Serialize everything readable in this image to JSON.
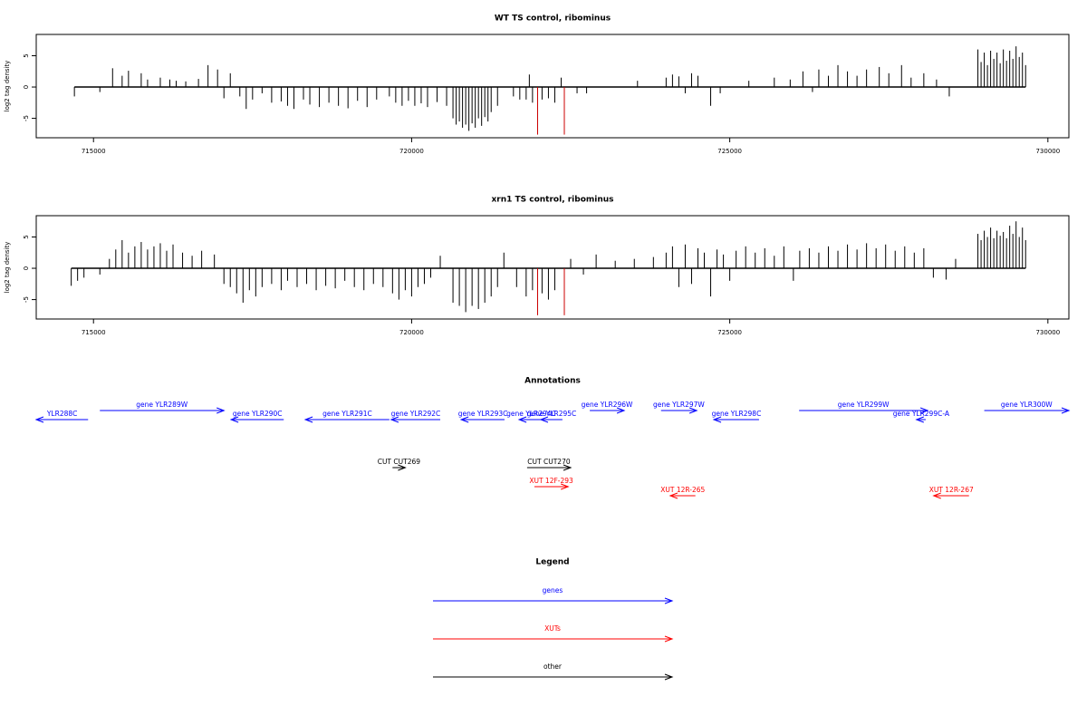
{
  "chart_data": [
    {
      "type": "bar",
      "title": "WT TS control, ribominus",
      "y_label": "log2 tag density",
      "xlim": [
        714100,
        730330
      ],
      "xticks": [
        715000,
        720000,
        725000,
        730000
      ],
      "ylim": [
        -8.1,
        8.4
      ],
      "yticks": [
        -5,
        0,
        5
      ],
      "series": [
        {
          "color": "#000000",
          "x": [
            714700,
            715100,
            715300,
            715450,
            715550,
            715750,
            715850,
            716050,
            716200,
            716300,
            716450,
            716650,
            716800,
            716950,
            717050,
            717150,
            717300,
            717400,
            717500,
            717650,
            717800,
            717950,
            718050,
            718150,
            718300,
            718400,
            718550,
            718700,
            718850,
            719000,
            719150,
            719300,
            719450,
            719650,
            719750,
            719850,
            719950,
            720050,
            720150,
            720250,
            720400,
            720550,
            720650,
            720700,
            720750,
            720800,
            720850,
            720900,
            720950,
            721000,
            721050,
            721100,
            721150,
            721200,
            721250,
            721350,
            721600,
            721700,
            721800,
            721850,
            721900,
            722050,
            722150,
            722250,
            722350,
            722600,
            722750,
            723550,
            724000,
            724100,
            724200,
            724300,
            724400,
            724500,
            724700,
            724850,
            725300,
            725700,
            725950,
            726150,
            726300,
            726400,
            726550,
            726700,
            726850,
            727000,
            727150,
            727350,
            727500,
            727700,
            727850,
            728050,
            728250,
            728450,
            728900,
            728950,
            729000,
            729050,
            729100,
            729150,
            729200,
            729250,
            729300,
            729350,
            729400,
            729450,
            729500,
            729550,
            729600,
            729650
          ],
          "values": [
            -1.5,
            -0.8,
            3,
            1.8,
            2.6,
            2.2,
            1.2,
            1.5,
            1.2,
            1,
            0.9,
            1.3,
            3.5,
            2.8,
            -1.8,
            2.2,
            -1.5,
            -3.5,
            -2,
            -1,
            -2.5,
            -2.3,
            -3,
            -3.5,
            -2,
            -2.8,
            -3.2,
            -2.5,
            -3,
            -3.4,
            -2.2,
            -3.2,
            -2,
            -1.5,
            -2.5,
            -3,
            -2.2,
            -3,
            -2.6,
            -3.2,
            -2.4,
            -3,
            -5,
            -6,
            -5.5,
            -6.5,
            -6,
            -7,
            -5.8,
            -6.5,
            -5,
            -6.2,
            -4.8,
            -5.5,
            -4,
            -3,
            -1.5,
            -2,
            -2,
            2,
            -2.5,
            -2,
            -1.8,
            -2.5,
            1.5,
            -1,
            -1,
            1,
            1.5,
            2,
            1.7,
            -1,
            2.2,
            1.8,
            -3,
            -1,
            1,
            1.5,
            1.2,
            2.5,
            -0.8,
            2.8,
            1.8,
            3.5,
            2.5,
            1.8,
            2.8,
            3.2,
            2.2,
            3.5,
            1.5,
            2.2,
            1.2,
            -1.5,
            6,
            4,
            5.5,
            3.5,
            5.8,
            4.5,
            5.5,
            3.8,
            6,
            4.2,
            5.8,
            4.5,
            6.5,
            4.8,
            5.5,
            3.5
          ]
        },
        {
          "color": "#cc0000",
          "x": [
            721980,
            722400
          ],
          "values": [
            -7.6,
            -7.6
          ]
        }
      ]
    },
    {
      "type": "bar",
      "title": "xrn1 TS control, ribominus",
      "y_label": "log2 tag density",
      "xlim": [
        714100,
        730330
      ],
      "xticks": [
        715000,
        720000,
        725000,
        730000
      ],
      "ylim": [
        -8.1,
        8.4
      ],
      "yticks": [
        -5,
        0,
        5
      ],
      "series": [
        {
          "color": "#000000",
          "x": [
            714650,
            714750,
            714850,
            715100,
            715250,
            715350,
            715450,
            715550,
            715650,
            715750,
            715850,
            715950,
            716050,
            716150,
            716250,
            716400,
            716550,
            716700,
            716900,
            717050,
            717150,
            717250,
            717350,
            717450,
            717550,
            717650,
            717800,
            717950,
            718050,
            718200,
            718350,
            718500,
            718650,
            718800,
            718950,
            719100,
            719250,
            719400,
            719550,
            719700,
            719800,
            719900,
            720000,
            720100,
            720200,
            720300,
            720450,
            720650,
            720750,
            720850,
            720950,
            721050,
            721150,
            721250,
            721350,
            721450,
            721650,
            721800,
            721900,
            722050,
            722150,
            722250,
            722500,
            722700,
            722900,
            723200,
            723500,
            723800,
            724000,
            724100,
            724200,
            724300,
            724400,
            724500,
            724600,
            724700,
            724800,
            724900,
            725000,
            725100,
            725250,
            725400,
            725550,
            725700,
            725850,
            726000,
            726100,
            726250,
            726400,
            726550,
            726700,
            726850,
            727000,
            727150,
            727300,
            727450,
            727600,
            727750,
            727900,
            728050,
            728200,
            728400,
            728550,
            728900,
            728950,
            729000,
            729050,
            729100,
            729150,
            729200,
            729250,
            729300,
            729350,
            729400,
            729450,
            729500,
            729550,
            729600,
            729650
          ],
          "values": [
            -2.8,
            -2,
            -1.5,
            -1,
            1.5,
            3,
            4.5,
            2.5,
            3.5,
            4.2,
            3,
            3.5,
            4,
            2.8,
            3.8,
            2.5,
            2,
            2.8,
            2.2,
            -2.5,
            -3,
            -4,
            -5.5,
            -3.5,
            -4.5,
            -3,
            -2.5,
            -3.5,
            -2,
            -3,
            -2.5,
            -3.5,
            -2.8,
            -3.2,
            -2,
            -3,
            -3.5,
            -2.5,
            -3,
            -4,
            -5,
            -3.5,
            -4.5,
            -3,
            -2.5,
            -1.5,
            2,
            -5.5,
            -6,
            -7,
            -6,
            -6.5,
            -5.5,
            -4.5,
            -3,
            2.5,
            -3,
            -4.5,
            -3.5,
            -4,
            -5,
            -3.5,
            1.5,
            -1,
            2.2,
            1.2,
            1.5,
            1.8,
            2.5,
            3.5,
            -3,
            3.8,
            -2.5,
            3.2,
            2.5,
            -4.5,
            3,
            2.2,
            -2,
            2.8,
            3.5,
            2.5,
            3.2,
            2,
            3.5,
            -2,
            2.8,
            3.2,
            2.5,
            3.5,
            2.8,
            3.8,
            3,
            4,
            3.2,
            3.8,
            2.8,
            3.5,
            2.5,
            3.2,
            -1.5,
            -1.8,
            1.5,
            5.5,
            4.5,
            6,
            5,
            6.5,
            4.8,
            6,
            5.2,
            5.8,
            4.8,
            6.8,
            5.5,
            7.5,
            5,
            6.5,
            4.5
          ]
        },
        {
          "color": "#cc0000",
          "x": [
            721980,
            722400
          ],
          "values": [
            -7.5,
            -7.5
          ]
        }
      ]
    }
  ],
  "annotations": {
    "title": "Annotations",
    "features": [
      {
        "label": "YLR288C",
        "kind": "gene",
        "strand": "-",
        "color": "#0000ff",
        "start": 714100,
        "end": 714915
      },
      {
        "label": "gene YLR289W",
        "kind": "gene",
        "strand": "+",
        "color": "#0000ff",
        "start": 715100,
        "end": 717050
      },
      {
        "label": "gene YLR290C",
        "kind": "gene",
        "strand": "-",
        "color": "#0000ff",
        "start": 717163,
        "end": 717990
      },
      {
        "label": "gene YLR291C",
        "kind": "gene",
        "strand": "-",
        "color": "#0000ff",
        "start": 718330,
        "end": 719650
      },
      {
        "label": "gene YLR292C",
        "kind": "gene",
        "strand": "-",
        "color": "#0000ff",
        "start": 719680,
        "end": 720450
      },
      {
        "label": "gene YLR293C",
        "kind": "gene",
        "strand": "-",
        "color": "#0000ff",
        "start": 720780,
        "end": 721460
      },
      {
        "label": "gene YLR294C",
        "kind": "gene",
        "strand": "-",
        "color": "#0000ff",
        "start": 721690,
        "end": 722070
      },
      {
        "label": "gene YLR295C",
        "kind": "gene",
        "strand": "-",
        "color": "#0000ff",
        "start": 722030,
        "end": 722370
      },
      {
        "label": "gene YLR296W",
        "kind": "gene",
        "strand": "+",
        "color": "#0000ff",
        "start": 722800,
        "end": 723340
      },
      {
        "label": "gene YLR297W",
        "kind": "gene",
        "strand": "+",
        "color": "#0000ff",
        "start": 723920,
        "end": 724480
      },
      {
        "label": "gene YLR298C",
        "kind": "gene",
        "strand": "-",
        "color": "#0000ff",
        "start": 724750,
        "end": 725460
      },
      {
        "label": "gene YLR299W",
        "kind": "gene",
        "strand": "+",
        "color": "#0000ff",
        "start": 726090,
        "end": 728110
      },
      {
        "label": "gene YLR299C-A",
        "kind": "gene",
        "strand": "-",
        "color": "#0000ff",
        "start": 727935,
        "end": 728080
      },
      {
        "label": "gene YLR300W",
        "kind": "gene",
        "strand": "+",
        "color": "#0000ff",
        "start": 729000,
        "end": 730330
      },
      {
        "label": "CUT CUT269",
        "kind": "other",
        "strand": "+",
        "color": "#000000",
        "start": 719700,
        "end": 719900
      },
      {
        "label": "CUT CUT270",
        "kind": "other",
        "strand": "+",
        "color": "#000000",
        "start": 721815,
        "end": 722500
      },
      {
        "label": "XUT 12F-293",
        "kind": "XUT",
        "strand": "+",
        "color": "#ff0000",
        "start": 721930,
        "end": 722460
      },
      {
        "label": "XUT 12R-265",
        "kind": "XUT",
        "strand": "-",
        "color": "#ff0000",
        "start": 724065,
        "end": 724460
      },
      {
        "label": "XUT 12R-267",
        "kind": "XUT",
        "strand": "-",
        "color": "#ff0000",
        "start": 728205,
        "end": 728760
      }
    ]
  },
  "legend": {
    "title": "Legend",
    "items": [
      {
        "label": "genes",
        "color": "#0000ff"
      },
      {
        "label": "XUTs",
        "color": "#ff0000"
      },
      {
        "label": "other",
        "color": "#000000"
      }
    ]
  }
}
